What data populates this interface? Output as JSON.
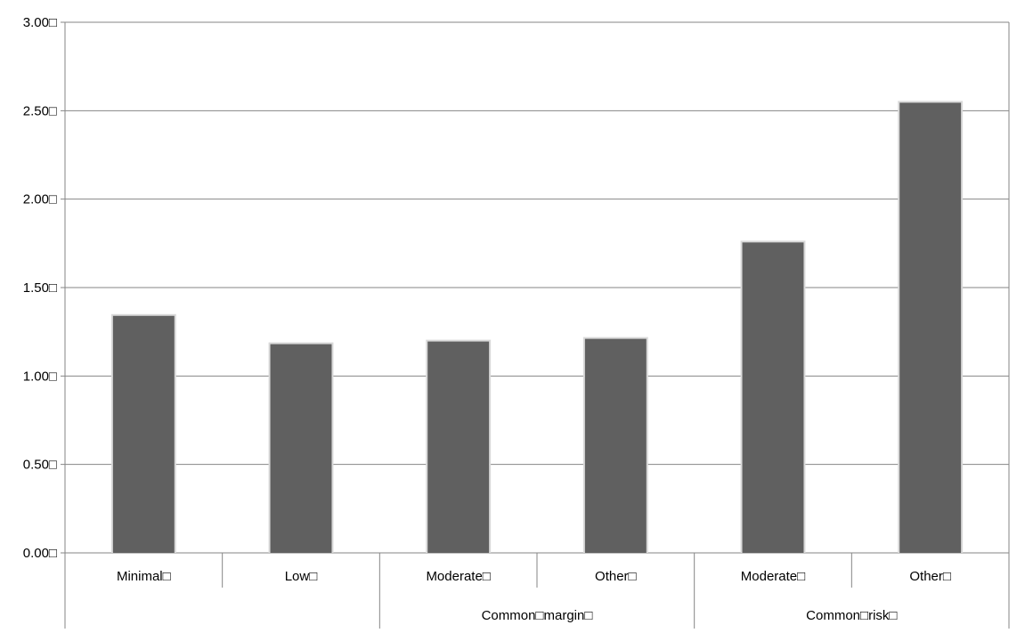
{
  "chart_data": {
    "type": "bar",
    "title": "",
    "categories": [
      "Minimal",
      "Low",
      "Moderate",
      "Other",
      "Moderate",
      "Other"
    ],
    "category_label_suffix": "□",
    "groups": [
      {
        "label": "",
        "start": 0,
        "end": 1
      },
      {
        "label": "Common□margin□",
        "start": 2,
        "end": 3
      },
      {
        "label": "Common□risk□",
        "start": 4,
        "end": 5
      }
    ],
    "series": [
      {
        "name": "",
        "values": [
          1.34,
          1.18,
          1.195,
          1.21,
          1.755,
          2.545
        ]
      }
    ],
    "ylim": [
      0,
      3
    ],
    "yticks": [
      0,
      0.5,
      1,
      1.5,
      2,
      2.5,
      3
    ],
    "ytick_format": "fixed2",
    "ytick_suffix": "□",
    "xlabel": "",
    "ylabel": "",
    "grid": true,
    "legend": "none",
    "colors": {
      "bar": "#606060",
      "bar_edge": "#d9d9d9",
      "axis": "#868686",
      "grid": "#868686",
      "text": "#000000"
    }
  }
}
